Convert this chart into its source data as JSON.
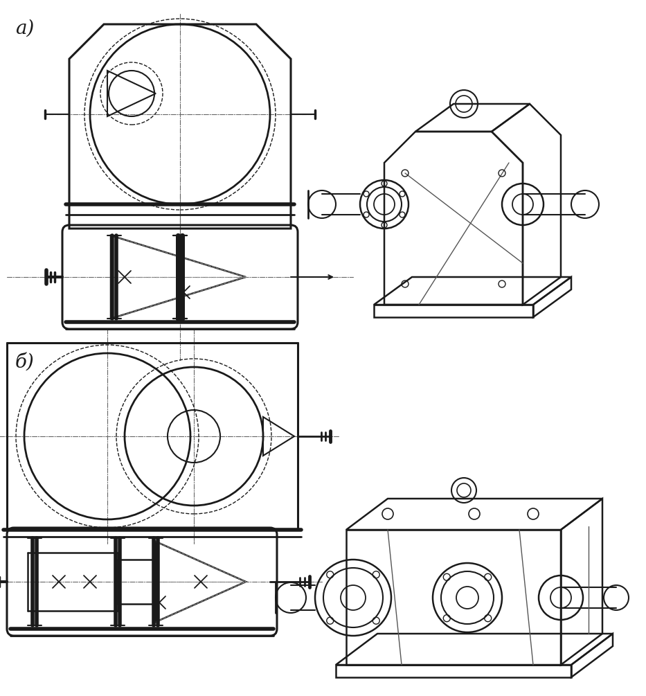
{
  "title_a": "а)",
  "title_b": "б)",
  "bg_color": "#ffffff",
  "line_color": "#1a1a1a",
  "figsize": [
    9.33,
    10.05
  ],
  "dpi": 100
}
